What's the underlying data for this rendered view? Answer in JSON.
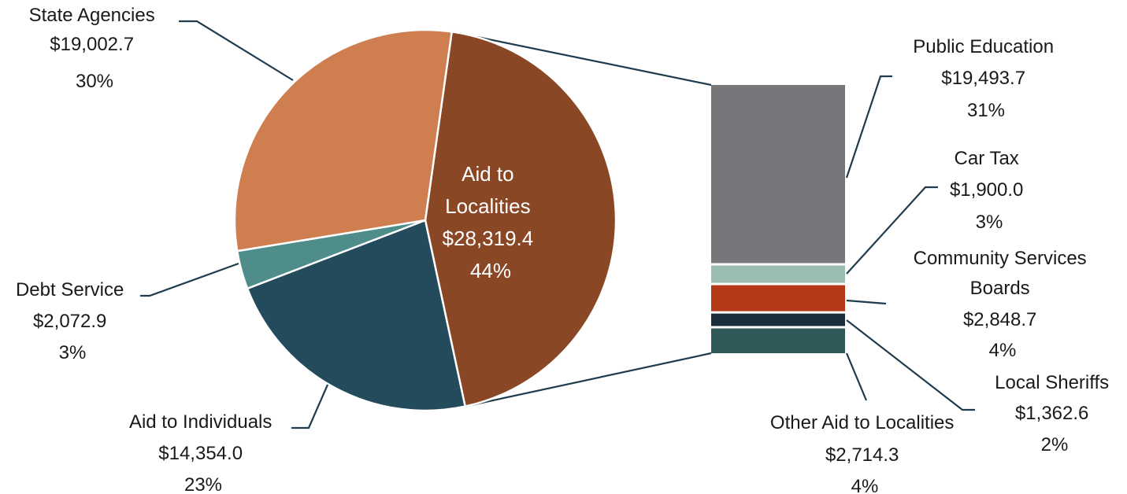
{
  "chart_data": {
    "type": "pie",
    "title": "",
    "pie": {
      "slices": [
        {
          "name": "Aid to Localities",
          "value": 28319.4,
          "value_label": "$28,319.4",
          "percent": "44%",
          "color": "#8a4726"
        },
        {
          "name": "Aid to Individuals",
          "value": 14354.0,
          "value_label": "$14,354.0",
          "percent": "23%",
          "color": "#234b5c"
        },
        {
          "name": "Debt Service",
          "value": 2072.9,
          "value_label": "$2,072.9",
          "percent": "3%",
          "color": "#4f8d8b"
        },
        {
          "name": "State Agencies",
          "value": 19002.7,
          "value_label": "$19,002.7",
          "percent": "30%",
          "color": "#cf7e4f"
        }
      ]
    },
    "breakdown": {
      "parent": "Aid to Localities",
      "segments": [
        {
          "name": "Public Education",
          "value": 19493.7,
          "value_label": "$19,493.7",
          "percent": "31%",
          "color": "#76777b"
        },
        {
          "name": "Car Tax",
          "value": 1900.0,
          "value_label": "$1,900.0",
          "percent": "3%",
          "color": "#9bbdb1"
        },
        {
          "name": "Community Services Boards",
          "value": 2848.7,
          "value_label": "$2,848.7",
          "percent": "4%",
          "color": "#b43a17"
        },
        {
          "name": "Local Sheriffs",
          "value": 1362.6,
          "value_label": "$1,362.6",
          "percent": "2%",
          "color": "#1c2e3b"
        },
        {
          "name": "Other Aid to Localities",
          "value": 2714.3,
          "value_label": "$2,714.3",
          "percent": "4%",
          "color": "#2f5a59"
        }
      ]
    }
  }
}
